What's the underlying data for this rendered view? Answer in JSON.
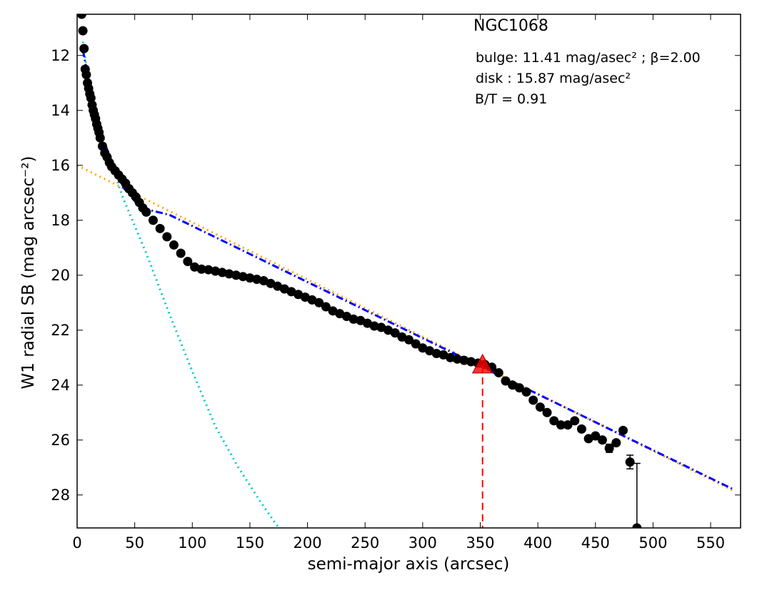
{
  "chart_data": {
    "type": "scatter",
    "annotations": [
      "NGC1068",
      "bulge: 11.41 mag/asec² ; β=2.00",
      "disk  : 15.87 mag/asec²",
      "B/T = 0.91"
    ],
    "xlabel": "semi-major axis (arcsec)",
    "ylabel": "W1 radial SB (mag arcsec⁻²)",
    "xlim": [
      0,
      576
    ],
    "ylim": [
      29.2,
      10.5
    ],
    "y_inverted": true,
    "xticks": [
      0,
      50,
      100,
      150,
      200,
      250,
      300,
      350,
      400,
      450,
      500,
      550
    ],
    "yticks": [
      12,
      14,
      16,
      18,
      20,
      22,
      24,
      26,
      28
    ],
    "series": [
      {
        "type": "line",
        "style": "dotted",
        "color": "#00c5c5",
        "x": [
          5,
          10,
          20,
          30,
          40,
          60,
          80,
          100,
          120,
          140,
          160,
          175
        ],
        "values": [
          11.5,
          13.0,
          14.8,
          16.0,
          17.2,
          19.2,
          21.4,
          23.5,
          25.5,
          27.0,
          28.3,
          29.2
        ]
      },
      {
        "type": "line",
        "style": "dotted",
        "color": "#ffa500",
        "x": [
          0,
          570
        ],
        "values": [
          16.0,
          27.85
        ]
      },
      {
        "type": "line",
        "style": "dashdot",
        "color": "#0000ff",
        "x": [
          5,
          10,
          20,
          30,
          40,
          50,
          60,
          80,
          570
        ],
        "values": [
          11.8,
          12.9,
          14.7,
          15.9,
          16.8,
          17.3,
          17.6,
          17.8,
          27.8
        ]
      },
      {
        "type": "scatter",
        "color": "#000000",
        "x": [
          4,
          5,
          6,
          7,
          8,
          9,
          10,
          11,
          12,
          13,
          14,
          15,
          16,
          17,
          18,
          19,
          20,
          22,
          24,
          26,
          28,
          30,
          33,
          36,
          39,
          42,
          45,
          48,
          51,
          54,
          57,
          60,
          66,
          72,
          78,
          84,
          90,
          96,
          102,
          108,
          114,
          120,
          126,
          132,
          138,
          144,
          150,
          156,
          162,
          168,
          174,
          180,
          186,
          192,
          198,
          204,
          210,
          216,
          222,
          228,
          234,
          240,
          246,
          252,
          258,
          264,
          270,
          276,
          282,
          288,
          294,
          300,
          306,
          312,
          318,
          324,
          330,
          336,
          342,
          348,
          354,
          360,
          366,
          372,
          378,
          384,
          390,
          396,
          402,
          408,
          414,
          420,
          426,
          432,
          438,
          444,
          450,
          456,
          462,
          468,
          474,
          480,
          486
        ],
        "values": [
          10.5,
          11.1,
          11.75,
          12.5,
          12.7,
          13.0,
          13.2,
          13.4,
          13.55,
          13.8,
          14.0,
          14.15,
          14.3,
          14.5,
          14.65,
          14.8,
          15.0,
          15.3,
          15.55,
          15.7,
          15.9,
          16.05,
          16.2,
          16.35,
          16.5,
          16.65,
          16.85,
          17.0,
          17.15,
          17.35,
          17.55,
          17.7,
          18.0,
          18.3,
          18.6,
          18.9,
          19.2,
          19.5,
          19.7,
          19.78,
          19.8,
          19.85,
          19.9,
          19.95,
          20.0,
          20.05,
          20.1,
          20.15,
          20.2,
          20.3,
          20.4,
          20.5,
          20.6,
          20.7,
          20.8,
          20.9,
          21.0,
          21.15,
          21.3,
          21.4,
          21.5,
          21.6,
          21.65,
          21.75,
          21.85,
          21.9,
          22.0,
          22.1,
          22.25,
          22.35,
          22.5,
          22.65,
          22.75,
          22.85,
          22.9,
          23.0,
          23.05,
          23.1,
          23.15,
          23.2,
          23.25,
          23.35,
          23.55,
          23.85,
          24.0,
          24.1,
          24.25,
          24.55,
          24.8,
          25.0,
          25.3,
          25.45,
          25.45,
          25.3,
          25.6,
          25.95,
          25.85,
          26.0,
          26.3,
          26.1,
          25.65,
          26.8,
          29.2
        ],
        "yerr": [
          0,
          0,
          0,
          0,
          0,
          0,
          0,
          0,
          0,
          0,
          0,
          0,
          0,
          0,
          0,
          0,
          0,
          0,
          0,
          0,
          0,
          0,
          0,
          0,
          0,
          0,
          0,
          0,
          0,
          0,
          0,
          0,
          0,
          0,
          0,
          0,
          0,
          0,
          0,
          0,
          0,
          0,
          0,
          0,
          0,
          0,
          0,
          0,
          0,
          0,
          0,
          0,
          0,
          0,
          0,
          0,
          0,
          0,
          0,
          0,
          0,
          0,
          0,
          0,
          0,
          0,
          0,
          0,
          0,
          0,
          0,
          0,
          0,
          0,
          0,
          0,
          0,
          0,
          0,
          0,
          0,
          0,
          0,
          0,
          0,
          0,
          0,
          0,
          0,
          0,
          0,
          0,
          0,
          0,
          0,
          0,
          0,
          0,
          0.15,
          0,
          0,
          0.25,
          2.35
        ]
      }
    ],
    "marker": {
      "x": 352,
      "y": 23.3,
      "color": "#ff0000"
    }
  }
}
